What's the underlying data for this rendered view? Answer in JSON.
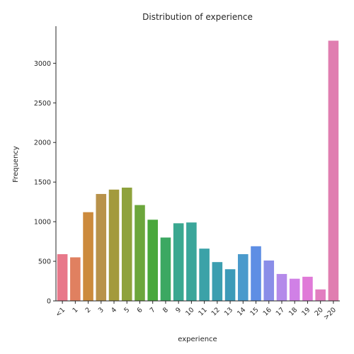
{
  "chart_data": {
    "type": "bar",
    "title": "Distribution of experience",
    "xlabel": "experience",
    "ylabel": "Frequency",
    "categories": [
      "<1",
      "1",
      "2",
      "3",
      "4",
      "5",
      "6",
      "7",
      "8",
      "9",
      "10",
      "11",
      "12",
      "13",
      "14",
      "15",
      "16",
      "17",
      "18",
      "19",
      "20",
      ">20"
    ],
    "values": [
      590,
      550,
      1120,
      1350,
      1405,
      1430,
      1210,
      1025,
      800,
      980,
      990,
      660,
      490,
      400,
      590,
      690,
      510,
      340,
      280,
      305,
      145,
      3285
    ],
    "colors": [
      "#e8788a",
      "#e08060",
      "#cc8a3c",
      "#b8924a",
      "#a39a3c",
      "#8ea23c",
      "#6ca63c",
      "#4aa83c",
      "#3ca862",
      "#3aa890",
      "#3aa69a",
      "#3ba2a8",
      "#3c9eb0",
      "#3c9ab8",
      "#4a9acc",
      "#5e8ee4",
      "#8a8ee8",
      "#b48aea",
      "#d080e6",
      "#e07ad8",
      "#e27ec0",
      "#e07eb0"
    ],
    "yticks": [
      0,
      500,
      1000,
      1500,
      2000,
      2500,
      3000
    ],
    "ylim": [
      0,
      3450
    ],
    "grid": false,
    "legend": "none"
  }
}
